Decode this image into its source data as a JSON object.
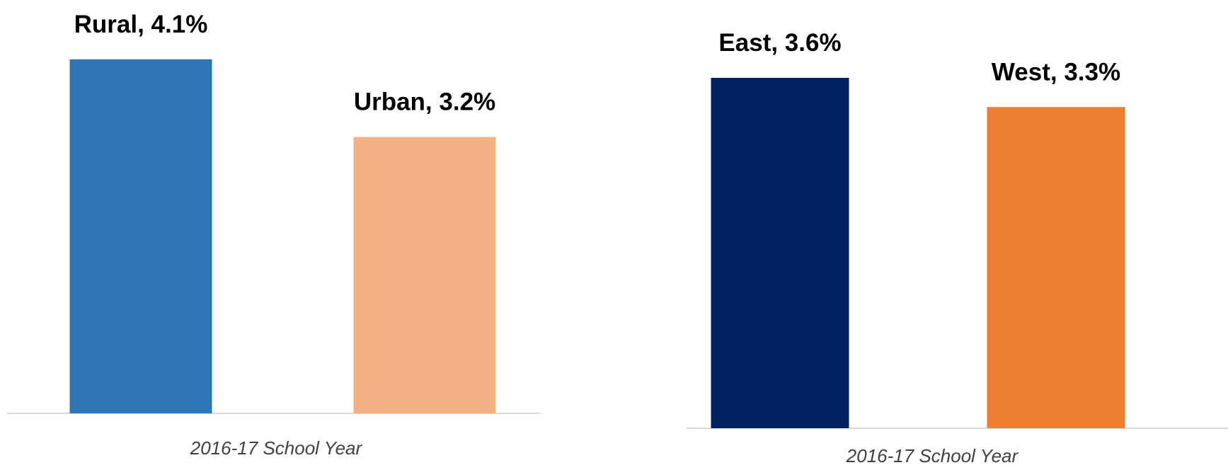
{
  "chart_data": [
    {
      "type": "bar",
      "categories": [
        "Rural",
        "Urban"
      ],
      "values": [
        4.1,
        3.2
      ],
      "data_labels": [
        "Rural, 4.1%",
        "Urban, 3.2%"
      ],
      "colors": [
        "#2e75b6",
        "#f4b183"
      ],
      "xlabel": "2016-17 School Year",
      "ylabel": "",
      "title": "",
      "grid": false,
      "legend": "none"
    },
    {
      "type": "bar",
      "categories": [
        "East",
        "West"
      ],
      "values": [
        3.6,
        3.3
      ],
      "data_labels": [
        "East, 3.6%",
        "West, 3.3%"
      ],
      "colors": [
        "#002060",
        "#ed7d31"
      ],
      "xlabel": "2016-17 School Year",
      "ylabel": "",
      "title": "",
      "grid": false,
      "legend": "none"
    }
  ]
}
